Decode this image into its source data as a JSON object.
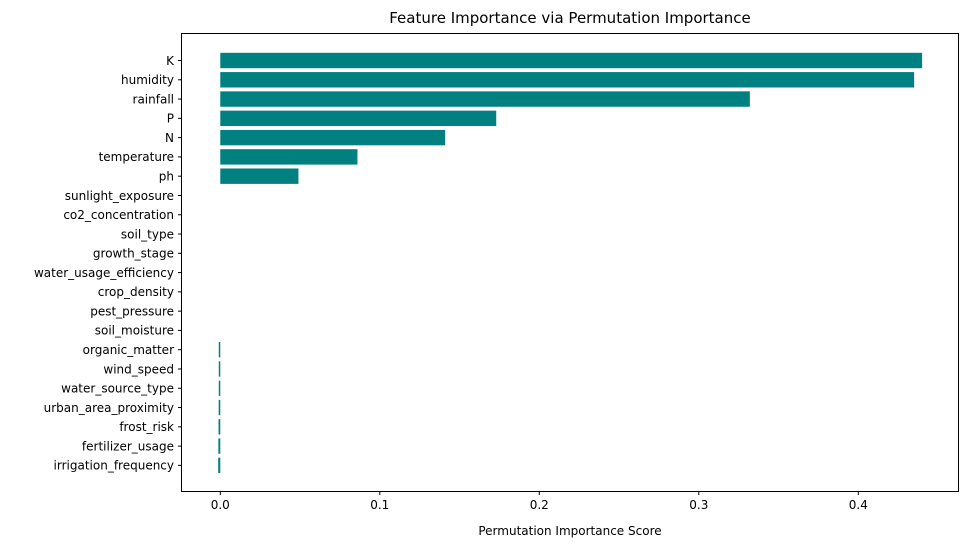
{
  "chart_data": {
    "type": "bar",
    "orientation": "horizontal",
    "title": "Feature Importance via Permutation Importance",
    "xlabel": "Permutation Importance Score",
    "ylabel": "",
    "xlim": [
      -0.024,
      0.4625
    ],
    "xticks": [
      "0.0",
      "0.1",
      "0.2",
      "0.3",
      "0.4"
    ],
    "xtick_values": [
      0.0,
      0.1,
      0.2,
      0.3,
      0.4
    ],
    "grid": false,
    "bar_color": "#008080",
    "categories": [
      "K",
      "humidity",
      "rainfall",
      "P",
      "N",
      "temperature",
      "ph",
      "sunlight_exposure",
      "co2_concentration",
      "soil_type",
      "growth_stage",
      "water_usage_efficiency",
      "crop_density",
      "pest_pressure",
      "soil_moisture",
      "organic_matter",
      "wind_speed",
      "water_source_type",
      "urban_area_proximity",
      "frost_risk",
      "fertilizer_usage",
      "irrigation_frequency"
    ],
    "values": [
      0.44,
      0.435,
      0.332,
      0.173,
      0.141,
      0.086,
      0.049,
      0.0,
      0.0,
      0.0,
      0.0,
      0.0,
      0.0,
      0.0,
      0.0,
      -0.0006,
      -0.0008,
      -0.0009,
      -0.001,
      -0.0011,
      -0.0012,
      -0.0013
    ]
  }
}
